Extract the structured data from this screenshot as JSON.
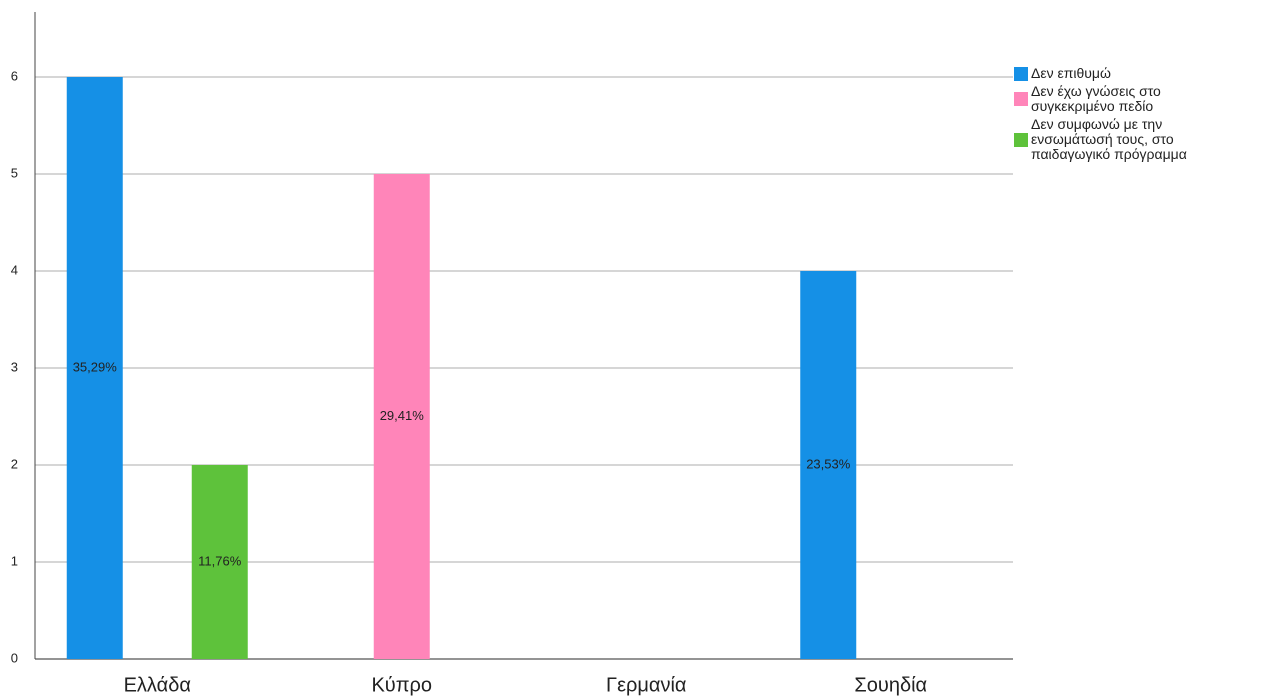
{
  "chart_data": {
    "type": "bar",
    "categories": [
      "Ελλάδα",
      "Κύπρο",
      "Γερμανία",
      "Σουηδία"
    ],
    "series": [
      {
        "name": "Δεν επιθυμώ",
        "color": "#1590e6",
        "values": [
          6,
          null,
          null,
          4
        ],
        "value_labels": [
          "35,29%",
          null,
          null,
          "23,53%"
        ]
      },
      {
        "name": "Δεν έχω γνώσεις στο\nσυγκεκριμένο πεδίο",
        "color": "#ff85b9",
        "values": [
          null,
          5,
          null,
          null
        ],
        "value_labels": [
          null,
          "29,41%",
          null,
          null
        ]
      },
      {
        "name": "Δεν συμφωνώ με την\nενσωμάτωσή τους, στο\nπαιδαγωγικό πρόγραμμα",
        "color": "#5ec23b",
        "values": [
          2,
          null,
          null,
          null
        ],
        "value_labels": [
          "11,76%",
          null,
          null,
          null
        ]
      }
    ],
    "ylim": [
      0,
      6.67
    ],
    "yticks": [
      0,
      1,
      2,
      3,
      4,
      5,
      6
    ],
    "grid": true,
    "legend": "right"
  }
}
